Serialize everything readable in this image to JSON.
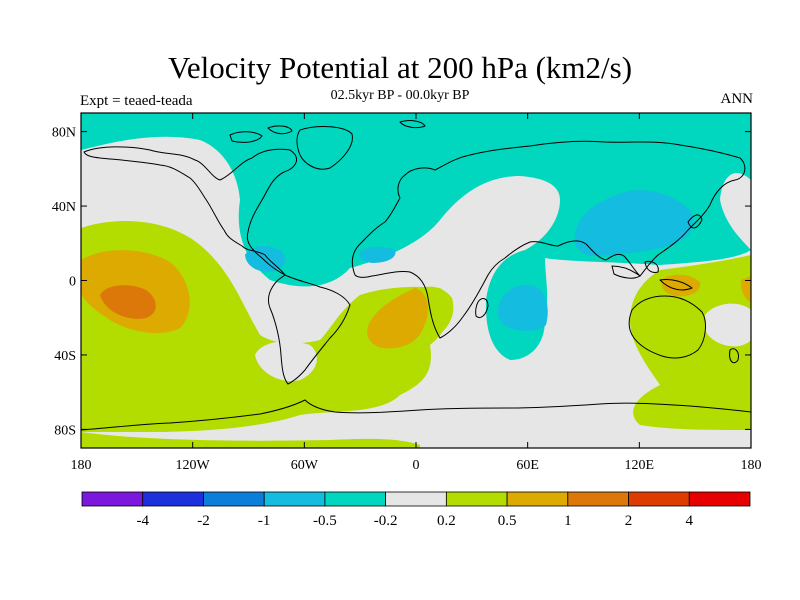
{
  "title": "Velocity Potential at 200 hPa (km2/s)",
  "subtitle": "02.5kyr BP - 00.0kyr BP",
  "left_label": "Expt = teaed-teada",
  "right_label": "ANN",
  "axes": {
    "x_ticks": [
      "180",
      "120W",
      "60W",
      "0",
      "60E",
      "120E",
      "180"
    ],
    "x_values": [
      -180,
      -120,
      -60,
      0,
      60,
      120,
      180
    ],
    "y_ticks": [
      "80N",
      "40N",
      "0",
      "40S",
      "80S"
    ],
    "y_values": [
      80,
      40,
      0,
      -40,
      -80
    ],
    "lon_range": [
      -180,
      180
    ],
    "lat_range": [
      -90,
      90
    ]
  },
  "colorbar": {
    "colors": [
      "#7a18dc",
      "#1e2fdc",
      "#0a7ed8",
      "#14bce0",
      "#00d7be",
      "#e6e6e6",
      "#b3dc00",
      "#dcaa00",
      "#dc780a",
      "#dc3c00",
      "#e60000"
    ],
    "labels": [
      "-4",
      "-2",
      "-1",
      "-0.5",
      "-0.2",
      "0.2",
      "0.5",
      "1",
      "2",
      "4"
    ]
  },
  "fill_colors": {
    "neutral": "#e6e6e6",
    "cyan": "#00d7be",
    "blue": "#14bce0",
    "yellow_green": "#b3dc00",
    "orange": "#dcaa00",
    "dark_orange": "#dc780a"
  }
}
